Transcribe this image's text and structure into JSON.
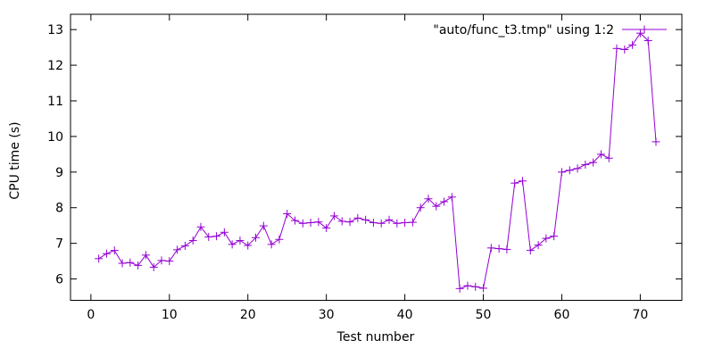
{
  "chart_data": {
    "type": "line",
    "title": "",
    "xlabel": "Test number",
    "ylabel": "CPU time (s)",
    "legend_label": "\"auto/func_t3.tmp\" using 1:2",
    "legend_position": "top-right-inside",
    "marker": "plus",
    "line_color": "#9400d3",
    "axis_color": "#000000",
    "background": "#ffffff",
    "grid": false,
    "xlim": [
      -2.6,
      75.3
    ],
    "ylim": [
      5.4,
      13.43
    ],
    "x_ticks": [
      0,
      10,
      20,
      30,
      40,
      50,
      60,
      70
    ],
    "y_ticks": [
      6,
      7,
      8,
      9,
      10,
      11,
      12,
      13
    ],
    "x": [
      1,
      2,
      3,
      4,
      5,
      6,
      7,
      8,
      9,
      10,
      11,
      12,
      13,
      14,
      15,
      16,
      17,
      18,
      19,
      20,
      21,
      22,
      23,
      24,
      25,
      26,
      27,
      28,
      29,
      30,
      31,
      32,
      33,
      34,
      35,
      36,
      37,
      38,
      39,
      40,
      41,
      42,
      43,
      44,
      45,
      46,
      47,
      48,
      49,
      50,
      51,
      52,
      53,
      54,
      55,
      56,
      57,
      58,
      59,
      60,
      61,
      62,
      63,
      64,
      65,
      66,
      67,
      68,
      69,
      70,
      71,
      72
    ],
    "y": [
      6.57,
      6.71,
      6.8,
      6.44,
      6.46,
      6.38,
      6.67,
      6.33,
      6.52,
      6.5,
      6.82,
      6.93,
      7.08,
      7.46,
      7.18,
      7.2,
      7.31,
      6.97,
      7.08,
      6.94,
      7.16,
      7.49,
      6.97,
      7.11,
      7.83,
      7.64,
      7.56,
      7.58,
      7.6,
      7.43,
      7.77,
      7.62,
      7.6,
      7.71,
      7.66,
      7.58,
      7.56,
      7.66,
      7.56,
      7.58,
      7.59,
      8.0,
      8.25,
      8.04,
      8.17,
      8.3,
      5.73,
      5.81,
      5.78,
      5.74,
      6.87,
      6.85,
      6.83,
      8.69,
      8.75,
      6.8,
      6.95,
      7.14,
      7.2,
      9.0,
      9.05,
      9.1,
      9.21,
      9.27,
      9.5,
      9.39,
      12.47,
      12.44,
      12.57,
      12.9,
      12.69,
      9.85
    ]
  }
}
